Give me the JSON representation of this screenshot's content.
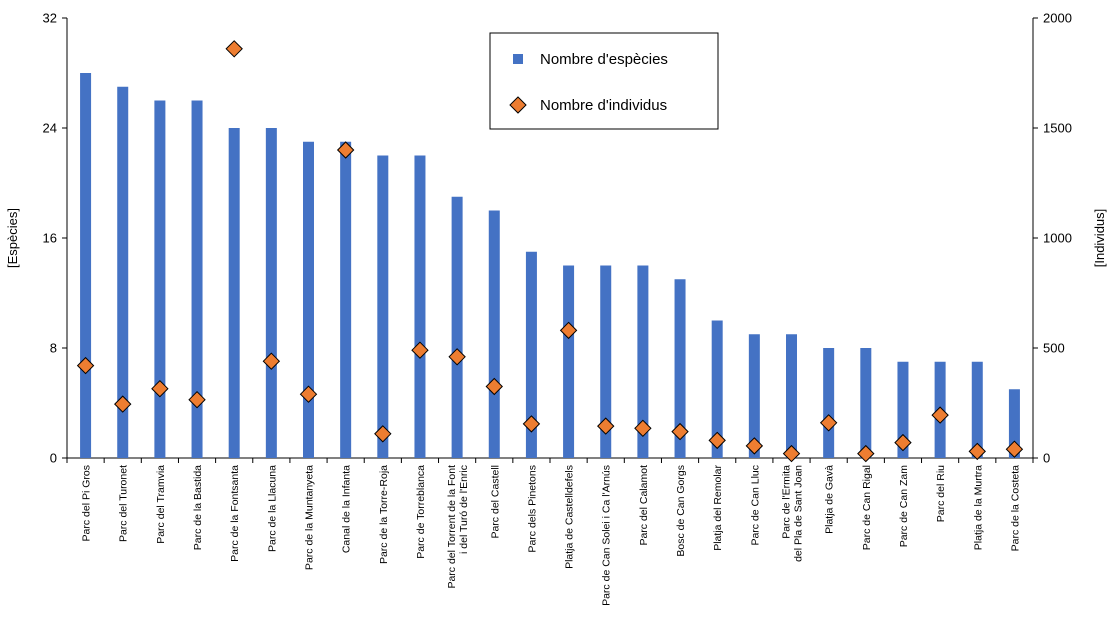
{
  "chart_data": {
    "type": "bar",
    "categories": [
      [
        "Parc del Pi Gros"
      ],
      [
        "Parc del Turonet"
      ],
      [
        "Parc del Tramvia"
      ],
      [
        "Parc de la Bastida"
      ],
      [
        "Parc de la Fontsanta"
      ],
      [
        "Parc de la Llacuna"
      ],
      [
        "Parc de la Muntanyeta"
      ],
      [
        "Canal de la Infanta"
      ],
      [
        "Parc de la Torre-Roja"
      ],
      [
        "Parc de Torreblanca"
      ],
      [
        "Parc del Torrent de la Font",
        "i del Turó de l'Enric"
      ],
      [
        "Parc del Castell"
      ],
      [
        "Parc dels Pinetons"
      ],
      [
        "Platja de Castelldefels"
      ],
      [
        "Parc de Can Solei i Ca l'Arnús"
      ],
      [
        "Parc del Calamot"
      ],
      [
        "Bosc de Can Gorgs"
      ],
      [
        "Platja del Remolar"
      ],
      [
        "Parc de Can Lluc"
      ],
      [
        "Parc de l'Ermita",
        "del Pla de Sant Joan"
      ],
      [
        "Platja de Gavà"
      ],
      [
        "Parc de Can Rigal"
      ],
      [
        "Parc de Can Zam"
      ],
      [
        "Parc del Riu"
      ],
      [
        "Platja de la Murtra"
      ],
      [
        "Parc de la Costeta"
      ]
    ],
    "series": [
      {
        "name": "Nombre d'espècies",
        "type": "bar",
        "axis": "left",
        "color": "#4472C4",
        "values": [
          28,
          27,
          26,
          26,
          24,
          24,
          23,
          23,
          22,
          22,
          19,
          18,
          15,
          14,
          14,
          14,
          13,
          10,
          9,
          9,
          8,
          8,
          7,
          7,
          7,
          5
        ]
      },
      {
        "name": "Nombre d'individus",
        "type": "scatter",
        "marker": "diamond",
        "axis": "right",
        "color": "#ED7D31",
        "values": [
          420,
          245,
          315,
          265,
          1860,
          440,
          290,
          1400,
          110,
          490,
          460,
          325,
          155,
          580,
          145,
          135,
          120,
          80,
          55,
          20,
          160,
          20,
          70,
          195,
          30,
          40
        ]
      }
    ],
    "ylabel": "[Espècies]",
    "ylabel_right": "[Individus]",
    "ylim": [
      0,
      32
    ],
    "yticks": [
      "0",
      "8",
      "16",
      "24",
      "32"
    ],
    "ylim_right": [
      0,
      2000
    ],
    "yticks_right": [
      "0",
      "500",
      "1000",
      "1500",
      "2000"
    ],
    "grid": false,
    "legend_position": "top-right"
  }
}
